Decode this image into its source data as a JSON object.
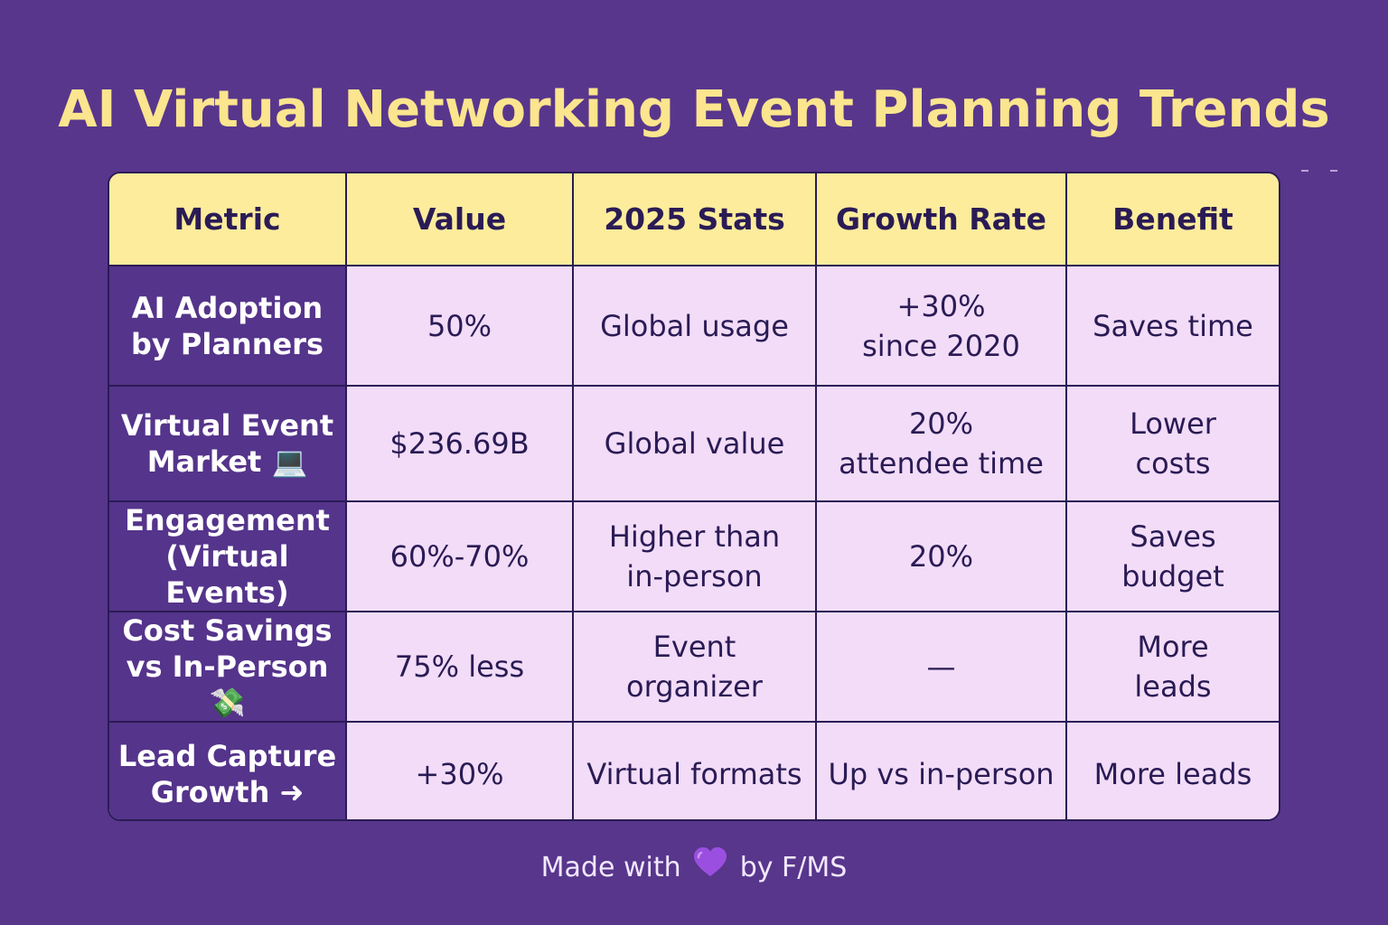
{
  "title": "AI Virtual Networking Event Planning Trends",
  "colors": {
    "background": "#58368c",
    "title": "#fbe58e",
    "header_bg": "#fcec9c",
    "cell_bg": "#f2dcf7",
    "metric_bg": "#55348b",
    "border": "#2a1b55",
    "heart": "#9b4fe0"
  },
  "table": {
    "headers": [
      "Metric",
      "Value",
      "2025 Stats",
      "Growth Rate",
      "Benefit"
    ],
    "rows": [
      {
        "metric": [
          "AI Adoption",
          "by Planners"
        ],
        "value": [
          "50%"
        ],
        "stats": [
          "Global usage"
        ],
        "growth": [
          "+30%",
          "since 2020"
        ],
        "benefit": [
          "Saves time"
        ]
      },
      {
        "metric": [
          "Virtual Event",
          "Market 💻"
        ],
        "value": [
          "$236.69B"
        ],
        "stats": [
          "Global value"
        ],
        "growth": [
          "20%",
          "attendee time"
        ],
        "benefit": [
          "Lower",
          "costs"
        ]
      },
      {
        "metric": [
          "Engagement",
          "(Virtual Events)"
        ],
        "value": [
          "60%-70%"
        ],
        "stats": [
          "Higher than",
          "in-person"
        ],
        "growth": [
          "20%"
        ],
        "benefit": [
          "Saves",
          "budget"
        ]
      },
      {
        "metric": [
          "Cost Savings",
          "vs In-Person💸"
        ],
        "value": [
          "75% less"
        ],
        "stats": [
          "Event",
          "organizer"
        ],
        "growth": [
          "—"
        ],
        "benefit": [
          "More",
          "leads"
        ]
      },
      {
        "metric": [
          "Lead Capture",
          "Growth ➜"
        ],
        "value": [
          "+30%"
        ],
        "stats": [
          "Virtual formats"
        ],
        "growth": [
          "Up vs in-person"
        ],
        "benefit": [
          "More leads"
        ]
      }
    ]
  },
  "footer": {
    "prefix": "Made with",
    "icon": "purple-heart-icon",
    "suffix": "by F/MS"
  }
}
